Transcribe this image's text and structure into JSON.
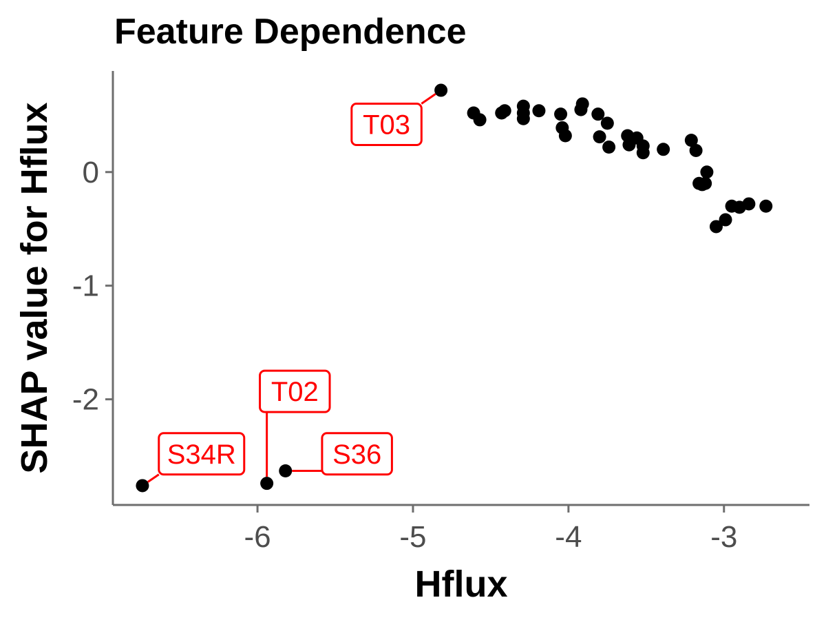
{
  "chart_data": {
    "type": "scatter",
    "title": "Feature Dependence",
    "xlabel": "Hflux",
    "ylabel": "SHAP value for Hflux",
    "xlim": [
      -6.93,
      -2.45
    ],
    "ylim": [
      -2.93,
      0.89
    ],
    "xticks": [
      -6,
      -5,
      -4,
      -3
    ],
    "yticks": [
      -2,
      -1,
      0
    ],
    "xtick_labels": [
      "-6",
      "-5",
      "-4",
      "-3"
    ],
    "ytick_labels": [
      "-2",
      "-1",
      "0"
    ],
    "grid": false,
    "point_color": "#000000",
    "annotation_color": "#ff0000",
    "points": [
      {
        "x": -6.74,
        "y": -2.76
      },
      {
        "x": -5.94,
        "y": -2.74
      },
      {
        "x": -5.82,
        "y": -2.63
      },
      {
        "x": -4.82,
        "y": 0.72
      },
      {
        "x": -4.61,
        "y": 0.52
      },
      {
        "x": -4.57,
        "y": 0.46
      },
      {
        "x": -4.43,
        "y": 0.52
      },
      {
        "x": -4.41,
        "y": 0.54
      },
      {
        "x": -4.29,
        "y": 0.58
      },
      {
        "x": -4.29,
        "y": 0.47
      },
      {
        "x": -4.29,
        "y": 0.52
      },
      {
        "x": -4.19,
        "y": 0.54
      },
      {
        "x": -4.05,
        "y": 0.51
      },
      {
        "x": -4.04,
        "y": 0.39
      },
      {
        "x": -4.02,
        "y": 0.32
      },
      {
        "x": -3.92,
        "y": 0.55
      },
      {
        "x": -3.91,
        "y": 0.6
      },
      {
        "x": -3.81,
        "y": 0.51
      },
      {
        "x": -3.8,
        "y": 0.31
      },
      {
        "x": -3.75,
        "y": 0.43
      },
      {
        "x": -3.74,
        "y": 0.22
      },
      {
        "x": -3.62,
        "y": 0.32
      },
      {
        "x": -3.61,
        "y": 0.24
      },
      {
        "x": -3.56,
        "y": 0.3
      },
      {
        "x": -3.52,
        "y": 0.23
      },
      {
        "x": -3.52,
        "y": 0.17
      },
      {
        "x": -3.39,
        "y": 0.2
      },
      {
        "x": -3.21,
        "y": 0.28
      },
      {
        "x": -3.18,
        "y": 0.19
      },
      {
        "x": -3.16,
        "y": -0.1
      },
      {
        "x": -3.14,
        "y": -0.11
      },
      {
        "x": -3.12,
        "y": -0.1
      },
      {
        "x": -3.11,
        "y": 0.0
      },
      {
        "x": -3.05,
        "y": -0.48
      },
      {
        "x": -2.99,
        "y": -0.42
      },
      {
        "x": -2.95,
        "y": -0.3
      },
      {
        "x": -2.9,
        "y": -0.31
      },
      {
        "x": -2.84,
        "y": -0.28
      },
      {
        "x": -2.73,
        "y": -0.3
      }
    ],
    "annotations": [
      {
        "label": "T03",
        "x": -4.82,
        "y": 0.72,
        "label_x": -5.17,
        "label_y": 0.42
      },
      {
        "label": "T02",
        "x": -5.94,
        "y": -2.74,
        "label_x": -5.76,
        "label_y": -1.93
      },
      {
        "label": "S36",
        "x": -5.82,
        "y": -2.63,
        "label_x": -5.36,
        "label_y": -2.48
      },
      {
        "label": "S34R",
        "x": -6.74,
        "y": -2.76,
        "label_x": -6.36,
        "label_y": -2.48
      }
    ]
  }
}
